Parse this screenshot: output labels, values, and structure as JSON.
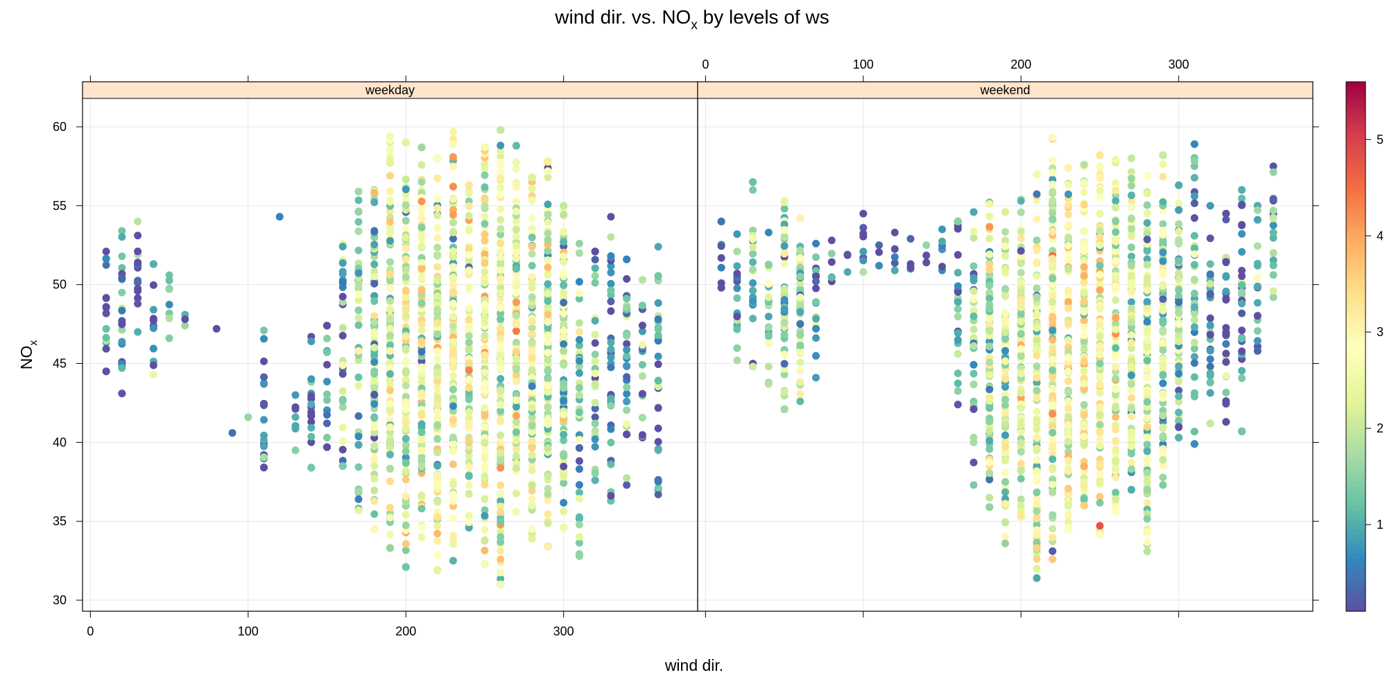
{
  "chart_data": {
    "type": "scatter",
    "title": {
      "main": "wind dir. vs. NO",
      "sub": "x",
      "rest": " by levels of ws"
    },
    "xlabel": "wind dir.",
    "ylabel": {
      "main": "NO",
      "sub": "x"
    },
    "xlim": [
      -5,
      385
    ],
    "ylim": [
      29.3,
      61.8
    ],
    "x_ticks": [
      0,
      100,
      200,
      300
    ],
    "y_ticks": [
      30,
      35,
      40,
      45,
      50,
      55,
      60
    ],
    "grid": true,
    "panels": [
      {
        "name": "weekday",
        "columns": [
          {
            "x": 10,
            "lo": 44.5,
            "hi": 52.1,
            "colour": 0.5
          },
          {
            "x": 20,
            "lo": 43.1,
            "hi": 53.4,
            "colour": 0.7
          },
          {
            "x": 30,
            "lo": 47.0,
            "hi": 54.0,
            "colour": 0.4
          },
          {
            "x": 40,
            "lo": 44.3,
            "hi": 51.3,
            "colour": 0.9
          },
          {
            "x": 50,
            "lo": 46.6,
            "hi": 50.6,
            "colour": 1.0
          },
          {
            "x": 60,
            "lo": 47.4,
            "hi": 48.1,
            "colour": 0.2
          },
          {
            "x": 80,
            "lo": 47.2,
            "hi": 47.2,
            "colour": 0.2
          },
          {
            "x": 90,
            "lo": 40.6,
            "hi": 40.6,
            "colour": 0.2
          },
          {
            "x": 100,
            "lo": 41.6,
            "hi": 41.6,
            "colour": 0.2
          },
          {
            "x": 110,
            "lo": 38.4,
            "hi": 47.1,
            "colour": 0.5
          },
          {
            "x": 120,
            "lo": 54.3,
            "hi": 54.3,
            "colour": 0.2
          },
          {
            "x": 130,
            "lo": 39.5,
            "hi": 43.0,
            "colour": 0.8
          },
          {
            "x": 140,
            "lo": 38.4,
            "hi": 46.7,
            "colour": 0.5
          },
          {
            "x": 150,
            "lo": 39.7,
            "hi": 47.4,
            "colour": 0.6
          },
          {
            "x": 160,
            "lo": 38.5,
            "hi": 52.6,
            "colour": 1.0
          },
          {
            "x": 170,
            "lo": 35.7,
            "hi": 55.9,
            "colour": 1.5
          },
          {
            "x": 180,
            "lo": 34.5,
            "hi": 56.0,
            "colour": 1.9
          },
          {
            "x": 190,
            "lo": 33.3,
            "hi": 59.4,
            "colour": 2.2
          },
          {
            "x": 200,
            "lo": 32.1,
            "hi": 59.0,
            "colour": 2.3
          },
          {
            "x": 210,
            "lo": 34.0,
            "hi": 58.7,
            "colour": 2.4
          },
          {
            "x": 220,
            "lo": 31.9,
            "hi": 58.0,
            "colour": 2.5
          },
          {
            "x": 230,
            "lo": 32.5,
            "hi": 59.7,
            "colour": 2.6
          },
          {
            "x": 240,
            "lo": 34.6,
            "hi": 56.3,
            "colour": 2.5
          },
          {
            "x": 250,
            "lo": 32.3,
            "hi": 58.7,
            "colour": 2.5
          },
          {
            "x": 260,
            "lo": 31.0,
            "hi": 59.8,
            "colour": 2.5
          },
          {
            "x": 270,
            "lo": 35.6,
            "hi": 58.8,
            "colour": 2.4
          },
          {
            "x": 280,
            "lo": 33.9,
            "hi": 56.8,
            "colour": 2.3
          },
          {
            "x": 290,
            "lo": 33.4,
            "hi": 57.8,
            "colour": 2.1
          },
          {
            "x": 300,
            "lo": 34.6,
            "hi": 55.0,
            "colour": 1.8
          },
          {
            "x": 310,
            "lo": 32.8,
            "hi": 52.6,
            "colour": 1.5
          },
          {
            "x": 320,
            "lo": 37.6,
            "hi": 52.1,
            "colour": 1.2
          },
          {
            "x": 330,
            "lo": 36.3,
            "hi": 54.3,
            "colour": 0.9
          },
          {
            "x": 340,
            "lo": 37.3,
            "hi": 51.6,
            "colour": 1.0
          },
          {
            "x": 350,
            "lo": 40.3,
            "hi": 50.3,
            "colour": 1.0
          },
          {
            "x": 360,
            "lo": 36.7,
            "hi": 52.4,
            "colour": 1.1
          }
        ]
      },
      {
        "name": "weekend",
        "columns": [
          {
            "x": 10,
            "lo": 49.8,
            "hi": 54.0,
            "colour": 0.5
          },
          {
            "x": 20,
            "lo": 45.2,
            "hi": 53.2,
            "colour": 0.9
          },
          {
            "x": 30,
            "lo": 44.8,
            "hi": 56.5,
            "colour": 1.3
          },
          {
            "x": 40,
            "lo": 43.7,
            "hi": 53.3,
            "colour": 1.5
          },
          {
            "x": 50,
            "lo": 42.1,
            "hi": 55.3,
            "colour": 1.7
          },
          {
            "x": 60,
            "lo": 42.6,
            "hi": 54.2,
            "colour": 1.6
          },
          {
            "x": 70,
            "lo": 44.1,
            "hi": 52.6,
            "colour": 1.0
          },
          {
            "x": 80,
            "lo": 50.2,
            "hi": 52.8,
            "colour": 0.4
          },
          {
            "x": 90,
            "lo": 50.8,
            "hi": 51.9,
            "colour": 0.2
          },
          {
            "x": 100,
            "lo": 50.8,
            "hi": 54.5,
            "colour": 0.2
          },
          {
            "x": 110,
            "lo": 51.2,
            "hi": 52.5,
            "colour": 0.2
          },
          {
            "x": 120,
            "lo": 50.9,
            "hi": 53.3,
            "colour": 0.2
          },
          {
            "x": 130,
            "lo": 51.0,
            "hi": 52.9,
            "colour": 0.3
          },
          {
            "x": 140,
            "lo": 51.4,
            "hi": 52.5,
            "colour": 0.3
          },
          {
            "x": 150,
            "lo": 50.9,
            "hi": 53.5,
            "colour": 0.3
          },
          {
            "x": 160,
            "lo": 42.4,
            "hi": 54.0,
            "colour": 0.7
          },
          {
            "x": 170,
            "lo": 37.3,
            "hi": 54.6,
            "colour": 1.5
          },
          {
            "x": 180,
            "lo": 35.9,
            "hi": 55.2,
            "colour": 2.0
          },
          {
            "x": 190,
            "lo": 33.6,
            "hi": 54.6,
            "colour": 2.4
          },
          {
            "x": 200,
            "lo": 35.3,
            "hi": 55.4,
            "colour": 2.2
          },
          {
            "x": 210,
            "lo": 31.4,
            "hi": 57.0,
            "colour": 2.3
          },
          {
            "x": 220,
            "lo": 32.6,
            "hi": 59.3,
            "colour": 2.5
          },
          {
            "x": 230,
            "lo": 34.5,
            "hi": 57.4,
            "colour": 2.6
          },
          {
            "x": 240,
            "lo": 36.0,
            "hi": 57.6,
            "colour": 2.6
          },
          {
            "x": 250,
            "lo": 34.2,
            "hi": 58.2,
            "colour": 2.6
          },
          {
            "x": 260,
            "lo": 35.6,
            "hi": 57.9,
            "colour": 2.5
          },
          {
            "x": 270,
            "lo": 37.0,
            "hi": 58.0,
            "colour": 2.3
          },
          {
            "x": 280,
            "lo": 33.1,
            "hi": 56.9,
            "colour": 2.2
          },
          {
            "x": 290,
            "lo": 37.3,
            "hi": 58.2,
            "colour": 2.0
          },
          {
            "x": 300,
            "lo": 40.3,
            "hi": 56.3,
            "colour": 1.6
          },
          {
            "x": 310,
            "lo": 39.9,
            "hi": 58.9,
            "colour": 1.2
          },
          {
            "x": 320,
            "lo": 41.2,
            "hi": 55.0,
            "colour": 0.8
          },
          {
            "x": 330,
            "lo": 41.3,
            "hi": 54.5,
            "colour": 0.5
          },
          {
            "x": 340,
            "lo": 40.7,
            "hi": 56.0,
            "colour": 0.5
          },
          {
            "x": 350,
            "lo": 45.8,
            "hi": 55.0,
            "colour": 0.9
          },
          {
            "x": 360,
            "lo": 49.2,
            "hi": 57.5,
            "colour": 1.2
          }
        ]
      }
    ],
    "colorkey": {
      "range": [
        0.1,
        5.6
      ],
      "ticks": [
        1,
        2,
        3,
        4,
        5
      ],
      "colors": [
        "#5e4fa2",
        "#3288bd",
        "#66c2a5",
        "#abdda4",
        "#e6f598",
        "#ffffbf",
        "#fee08b",
        "#fdae61",
        "#f46d43",
        "#d53e4f",
        "#9e0142"
      ]
    },
    "colors": {
      "strip_bg": "#ffe5cc",
      "grid": "#e6e6e6",
      "frame": "#000000"
    }
  }
}
